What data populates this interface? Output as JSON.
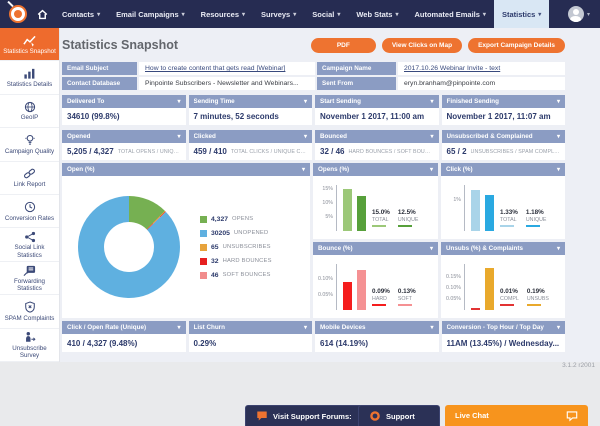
{
  "nav": {
    "items": [
      {
        "label": "Contacts",
        "caret": true
      },
      {
        "label": "Email Campaigns",
        "caret": true
      },
      {
        "label": "Resources",
        "caret": true
      },
      {
        "label": "Surveys",
        "caret": true
      },
      {
        "label": "Social",
        "caret": true
      },
      {
        "label": "Web Stats",
        "caret": true
      },
      {
        "label": "Automated Emails",
        "caret": true
      },
      {
        "label": "Statistics",
        "caret": true,
        "active": true
      }
    ]
  },
  "sidebar": {
    "items": [
      {
        "label": "Statistics Snapshot",
        "icon": "line-chart-icon",
        "active": true
      },
      {
        "label": "Statistics Details",
        "icon": "bar-chart-icon"
      },
      {
        "label": "GeoIP",
        "icon": "globe-icon"
      },
      {
        "label": "Campaign Quality",
        "icon": "lightbulb-icon"
      },
      {
        "label": "Link Report",
        "icon": "link-icon"
      },
      {
        "label": "Conversion Rates",
        "icon": "clock-icon"
      },
      {
        "label": "Social Link Statistics",
        "icon": "share-icon"
      },
      {
        "label": "Forwarding Statistics",
        "icon": "forward-icon"
      },
      {
        "label": "SPAM Complaints",
        "icon": "shield-x-icon"
      },
      {
        "label": "Unsubscribe Survey",
        "icon": "person-exit-icon"
      }
    ]
  },
  "header": {
    "title": "Statistics Snapshot",
    "buttons": [
      {
        "label": "PDF"
      },
      {
        "label": "View Clicks on Map"
      },
      {
        "label": "Export Campaign Details"
      }
    ]
  },
  "info": {
    "cells": [
      {
        "label": "Email Subject",
        "value": "How to create content that gets read [Webinar]",
        "link": true
      },
      {
        "label": "Campaign Name",
        "value": "2017.10.26 Webinar Invite - text",
        "link": true
      },
      {
        "label": "Contact Database",
        "value": "Pinpointe Subscribers - Newsletter and Webinars...",
        "link": false
      },
      {
        "label": "Sent From",
        "value": "eryn.branham@pinpointe.com",
        "link": false
      }
    ]
  },
  "stats_row1": [
    {
      "title": "Delivered To",
      "value": "34610 (99.8%)"
    },
    {
      "title": "Sending Time",
      "value": "7 minutes, 52 seconds"
    },
    {
      "title": "Start Sending",
      "value": "November 1 2017, 11:00 am"
    },
    {
      "title": "Finished Sending",
      "value": "November 1 2017, 11:07 am"
    }
  ],
  "stats_row2": [
    {
      "title": "Opened",
      "value": "5,205 / 4,327",
      "caption": "TOTAL OPENS / UNIQUE..."
    },
    {
      "title": "Clicked",
      "value": "459 / 410",
      "caption": "TOTAL CLICKS / UNIQUE CLIC..."
    },
    {
      "title": "Bounced",
      "value": "32 / 46",
      "caption": "HARD BOUNCES / SOFT BOUNCE..."
    },
    {
      "title": "Unsubscribed & Complained",
      "value": "65 / 2",
      "caption": "UNSUBSCRIBES / SPAM COMPLAIN..."
    }
  ],
  "bottom_row": [
    {
      "title": "Click / Open Rate (Unique)",
      "value": "410 / 4,327 (9.48%)"
    },
    {
      "title": "List Churn",
      "value": "0.29%"
    },
    {
      "title": "Mobile Devices",
      "value": "614 (14.19%)"
    },
    {
      "title": "Conversion - Top Hour / Top Day",
      "value": "11AM (13.45%) / Wednesday..."
    }
  ],
  "version": "3.1.2 r2001",
  "support_bar": {
    "buttons": [
      {
        "label": "Visit Support Forums:",
        "icon": "chat-bubble-icon",
        "style": "dark"
      },
      {
        "label": "Support",
        "icon": "life-ring-icon",
        "style": "dark"
      },
      {
        "label": "Live Chat",
        "icon": "chat-icon",
        "style": "orange",
        "icon_right": true
      }
    ]
  },
  "colors": {
    "accent_orange": "#ee7330",
    "live_chat_orange": "#f7941d",
    "nav_navy": "#262c52",
    "panel_header_blue": "#8b9cc3",
    "value_navy": "#2c3a6b"
  },
  "chart_data": [
    {
      "id": "open-donut",
      "type": "pie",
      "title": "Open (%)",
      "slices": [
        {
          "label": "OPENS",
          "value": 4327,
          "display": "4,327",
          "color": "#76b052"
        },
        {
          "label": "UNOPENED",
          "value": 30205,
          "display": "30205",
          "color": "#5fb0e0"
        },
        {
          "label": "UNSUBSCRIBES",
          "value": 65,
          "display": "65",
          "color": "#e7a33c"
        },
        {
          "label": "HARD BOUNCES",
          "value": 32,
          "display": "32",
          "color": "#e62020"
        },
        {
          "label": "SOFT BOUNCES",
          "value": 46,
          "display": "46",
          "color": "#f18c8c"
        }
      ],
      "draw_order": [
        0,
        2,
        3,
        4,
        1
      ],
      "legend_position": "right"
    },
    {
      "id": "opens-bar",
      "type": "bar",
      "title": "Opens (%)",
      "categories": [
        "TOTAL",
        "UNIQUE"
      ],
      "values": [
        15.0,
        12.5
      ],
      "value_labels": [
        "15.0%",
        "12.5%"
      ],
      "colors": [
        "#9cc878",
        "#57a03b"
      ],
      "yticks": [
        {
          "v": 15,
          "label": "15%"
        },
        {
          "v": 10,
          "label": "10%"
        },
        {
          "v": 5,
          "label": "5%"
        }
      ],
      "ymax": 16.5
    },
    {
      "id": "click-bar",
      "type": "bar",
      "title": "Click (%)",
      "categories": [
        "TOTAL",
        "UNIQUE"
      ],
      "values": [
        1.33,
        1.18
      ],
      "value_labels": [
        "1.33%",
        "1.18%"
      ],
      "colors": [
        "#a9d4e9",
        "#2aa9e1"
      ],
      "yticks": [
        {
          "v": 1,
          "label": "1%"
        }
      ],
      "ymax": 1.5
    },
    {
      "id": "bounce-bar",
      "type": "bar",
      "title": "Bounce (%)",
      "categories": [
        "HARD",
        "SOFT"
      ],
      "values": [
        0.09,
        0.13
      ],
      "value_labels": [
        "0.09%",
        "0.13%"
      ],
      "colors": [
        "#f51d1d",
        "#f59193"
      ],
      "yticks": [
        {
          "v": 0.1,
          "label": "0.10%"
        },
        {
          "v": 0.05,
          "label": "0.05%"
        }
      ],
      "ymax": 0.15
    },
    {
      "id": "unsubs-bar",
      "type": "bar",
      "title": "Unsubs (%) & Complaints",
      "categories": [
        "COMPL",
        "UNSUBS"
      ],
      "values": [
        0.01,
        0.19
      ],
      "value_labels": [
        "0.01%",
        "0.19%"
      ],
      "colors": [
        "#e23333",
        "#e9a92c"
      ],
      "yticks": [
        {
          "v": 0.15,
          "label": "0.15%"
        },
        {
          "v": 0.1,
          "label": "0.10%"
        },
        {
          "v": 0.05,
          "label": "0.05%"
        }
      ],
      "ymax": 0.21
    }
  ]
}
